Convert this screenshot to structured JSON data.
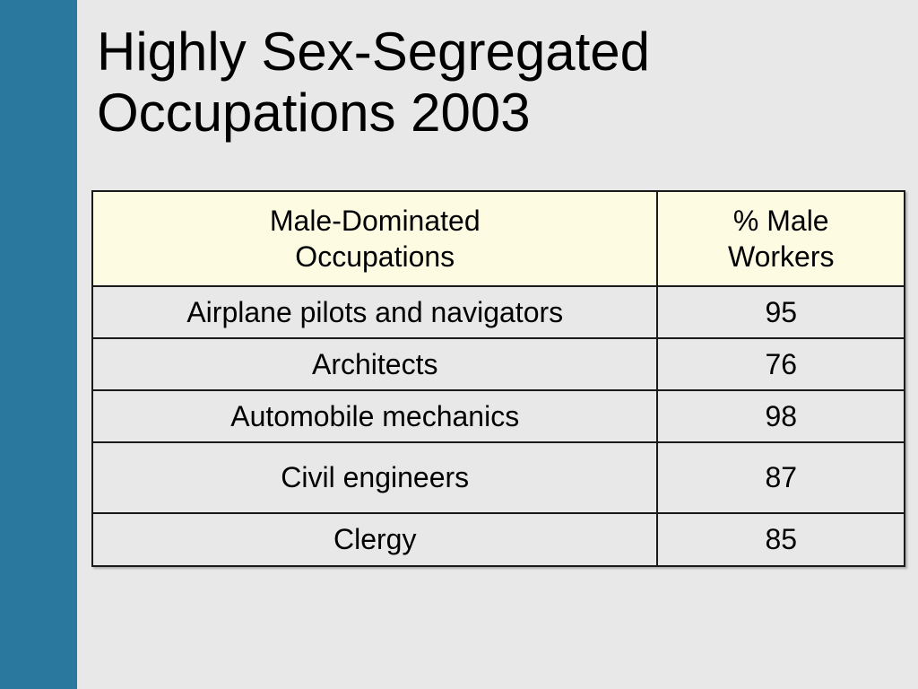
{
  "slide": {
    "title_line1": "Highly Sex-Segregated",
    "title_line2": "Occupations 2003",
    "colors": {
      "side_bar": "#2a789d",
      "background": "#e8e8e8",
      "header_fill": "#fdfce2"
    }
  },
  "table": {
    "headers": [
      {
        "line1": "Male-Dominated",
        "line2": "Occupations"
      },
      {
        "line1": "% Male",
        "line2": "Workers"
      }
    ],
    "rows": [
      {
        "occupation": "Airplane pilots and navigators",
        "percent_male": "95"
      },
      {
        "occupation": "Architects",
        "percent_male": "76"
      },
      {
        "occupation": "Automobile mechanics",
        "percent_male": "98"
      },
      {
        "occupation": "Civil engineers",
        "percent_male": "87"
      },
      {
        "occupation": "Clergy",
        "percent_male": "85"
      }
    ]
  }
}
